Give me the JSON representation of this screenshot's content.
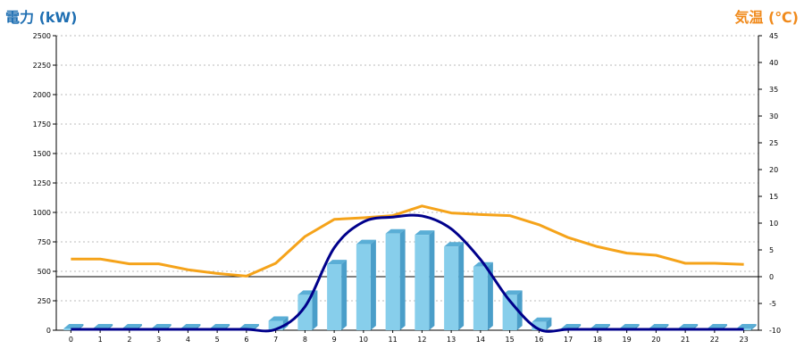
{
  "chart_data": {
    "type": "bar",
    "left_axis_label": "電力 (kW)",
    "right_axis_label": "気温 (℃)",
    "left_axis": {
      "min": 0,
      "max": 2500,
      "ticks": [
        "0",
        "250",
        "500",
        "750",
        "1000",
        "1250",
        "1500",
        "1750",
        "2000",
        "2250",
        "2500"
      ]
    },
    "right_axis": {
      "min": -10,
      "max": 45,
      "ticks": [
        "-10",
        "-5",
        "0",
        "5",
        "10",
        "15",
        "20",
        "25",
        "30",
        "35",
        "40",
        "45"
      ]
    },
    "categories": [
      "0",
      "1",
      "2",
      "3",
      "4",
      "5",
      "6",
      "7",
      "8",
      "9",
      "10",
      "11",
      "12",
      "13",
      "14",
      "15",
      "16",
      "17",
      "18",
      "19",
      "20",
      "21",
      "22",
      "23"
    ],
    "grid": true,
    "series": [
      {
        "kind": "bar",
        "axis": "left",
        "values": [
          0,
          0,
          0,
          0,
          0,
          0,
          0,
          80,
          300,
          560,
          730,
          820,
          810,
          710,
          540,
          300,
          70,
          0,
          0,
          0,
          0,
          0,
          0,
          0
        ]
      },
      {
        "kind": "line",
        "axis": "left",
        "values": [
          0,
          0,
          0,
          0,
          0,
          0,
          0,
          0,
          200,
          700,
          920,
          960,
          970,
          860,
          600,
          250,
          0,
          0,
          0,
          0,
          0,
          0,
          0,
          0
        ]
      },
      {
        "kind": "line",
        "axis": "right",
        "values": [
          3.3,
          3.3,
          2.4,
          2.4,
          1.3,
          0.6,
          0.1,
          2.5,
          7.5,
          10.7,
          11.0,
          11.4,
          13.2,
          11.9,
          11.6,
          11.4,
          9.7,
          7.3,
          5.6,
          4.4,
          4.0,
          2.5,
          2.5,
          2.3
        ]
      }
    ],
    "reference_line": {
      "axis": "right",
      "value": 0
    }
  },
  "colors": {
    "left_title": "#1f6fb2",
    "right_title": "#f08a1c",
    "bar_front": "#87ceeb",
    "bar_side": "#4a9ec9",
    "bar_top": "#5aaed6",
    "power_line": "#00008b",
    "temp_line": "#f5a31a"
  }
}
